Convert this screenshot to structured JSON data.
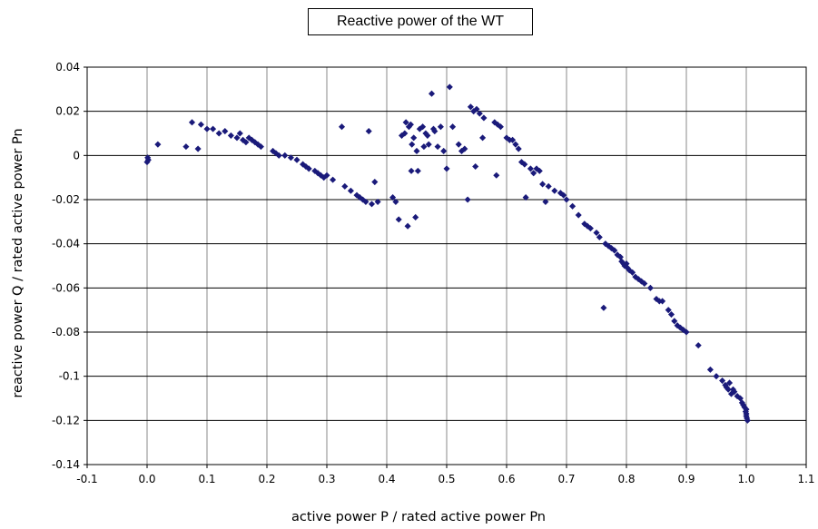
{
  "chart_data": {
    "type": "scatter",
    "title": "Reactive power of the WT",
    "xlabel": "active power P / rated active power Pn",
    "ylabel": "reactive power Q / rated active power Pn",
    "xlim": [
      -0.1,
      1.1
    ],
    "ylim": [
      -0.14,
      0.04
    ],
    "xticks": [
      -0.1,
      0.0,
      0.1,
      0.2,
      0.3,
      0.4,
      0.5,
      0.6,
      0.7,
      0.8,
      0.9,
      1.0,
      1.1
    ],
    "xtick_labels": [
      "-0.1",
      "0.0",
      "0.1",
      "0.2",
      "0.3",
      "0.4",
      "0.5",
      "0.6",
      "0.7",
      "0.8",
      "0.9",
      "1.0",
      "1.1"
    ],
    "yticks": [
      0.04,
      0.02,
      0,
      -0.02,
      -0.04,
      -0.06,
      -0.08,
      -0.1,
      -0.12,
      -0.14
    ],
    "ytick_labels": [
      "0.04",
      "0.02",
      "0",
      "-0.02",
      "-0.04",
      "-0.06",
      "-0.08",
      "-0.1",
      "-0.12",
      "-0.14"
    ],
    "grid": true,
    "legend": false,
    "marker_color": "#1a1a7a",
    "series": [
      {
        "points": [
          [
            0.0,
            -0.003
          ],
          [
            0.002,
            -0.002
          ],
          [
            0.001,
            -0.001
          ],
          [
            0.018,
            0.005
          ],
          [
            0.065,
            0.004
          ],
          [
            0.075,
            0.015
          ],
          [
            0.085,
            0.003
          ],
          [
            0.09,
            0.014
          ],
          [
            0.1,
            0.012
          ],
          [
            0.11,
            0.012
          ],
          [
            0.12,
            0.01
          ],
          [
            0.13,
            0.011
          ],
          [
            0.14,
            0.009
          ],
          [
            0.15,
            0.008
          ],
          [
            0.155,
            0.01
          ],
          [
            0.16,
            0.007
          ],
          [
            0.165,
            0.006
          ],
          [
            0.17,
            0.008
          ],
          [
            0.175,
            0.007
          ],
          [
            0.18,
            0.006
          ],
          [
            0.185,
            0.005
          ],
          [
            0.19,
            0.004
          ],
          [
            0.21,
            0.002
          ],
          [
            0.215,
            0.001
          ],
          [
            0.22,
            0.0
          ],
          [
            0.23,
            0.0
          ],
          [
            0.24,
            -0.001
          ],
          [
            0.25,
            -0.002
          ],
          [
            0.26,
            -0.004
          ],
          [
            0.265,
            -0.005
          ],
          [
            0.27,
            -0.006
          ],
          [
            0.28,
            -0.007
          ],
          [
            0.285,
            -0.008
          ],
          [
            0.29,
            -0.009
          ],
          [
            0.295,
            -0.01
          ],
          [
            0.3,
            -0.009
          ],
          [
            0.31,
            -0.011
          ],
          [
            0.325,
            0.013
          ],
          [
            0.33,
            -0.014
          ],
          [
            0.34,
            -0.016
          ],
          [
            0.35,
            -0.018
          ],
          [
            0.355,
            -0.019
          ],
          [
            0.36,
            -0.02
          ],
          [
            0.365,
            -0.021
          ],
          [
            0.37,
            0.011
          ],
          [
            0.375,
            -0.022
          ],
          [
            0.38,
            -0.012
          ],
          [
            0.385,
            -0.021
          ],
          [
            0.41,
            -0.019
          ],
          [
            0.415,
            -0.021
          ],
          [
            0.42,
            -0.029
          ],
          [
            0.425,
            0.009
          ],
          [
            0.43,
            0.01
          ],
          [
            0.432,
            0.015
          ],
          [
            0.435,
            -0.032
          ],
          [
            0.437,
            0.013
          ],
          [
            0.44,
            0.014
          ],
          [
            0.441,
            -0.007
          ],
          [
            0.442,
            0.005
          ],
          [
            0.445,
            0.008
          ],
          [
            0.448,
            -0.028
          ],
          [
            0.45,
            0.002
          ],
          [
            0.452,
            -0.007
          ],
          [
            0.455,
            0.012
          ],
          [
            0.46,
            0.013
          ],
          [
            0.462,
            0.004
          ],
          [
            0.465,
            0.01
          ],
          [
            0.468,
            0.009
          ],
          [
            0.47,
            0.005
          ],
          [
            0.475,
            0.028
          ],
          [
            0.478,
            0.012
          ],
          [
            0.48,
            0.011
          ],
          [
            0.485,
            0.004
          ],
          [
            0.49,
            0.013
          ],
          [
            0.495,
            0.002
          ],
          [
            0.5,
            -0.006
          ],
          [
            0.505,
            0.031
          ],
          [
            0.51,
            0.013
          ],
          [
            0.52,
            0.005
          ],
          [
            0.525,
            0.002
          ],
          [
            0.53,
            0.003
          ],
          [
            0.535,
            -0.02
          ],
          [
            0.54,
            0.022
          ],
          [
            0.545,
            0.02
          ],
          [
            0.548,
            -0.005
          ],
          [
            0.55,
            0.021
          ],
          [
            0.555,
            0.019
          ],
          [
            0.56,
            0.008
          ],
          [
            0.562,
            0.017
          ],
          [
            0.58,
            0.015
          ],
          [
            0.583,
            -0.009
          ],
          [
            0.585,
            0.014
          ],
          [
            0.59,
            0.013
          ],
          [
            0.6,
            0.008
          ],
          [
            0.605,
            0.007
          ],
          [
            0.61,
            0.007
          ],
          [
            0.615,
            0.005
          ],
          [
            0.62,
            0.003
          ],
          [
            0.625,
            -0.003
          ],
          [
            0.63,
            -0.004
          ],
          [
            0.632,
            -0.019
          ],
          [
            0.64,
            -0.006
          ],
          [
            0.645,
            -0.008
          ],
          [
            0.65,
            -0.006
          ],
          [
            0.655,
            -0.007
          ],
          [
            0.66,
            -0.013
          ],
          [
            0.665,
            -0.021
          ],
          [
            0.67,
            -0.014
          ],
          [
            0.68,
            -0.016
          ],
          [
            0.69,
            -0.017
          ],
          [
            0.695,
            -0.018
          ],
          [
            0.7,
            -0.02
          ],
          [
            0.71,
            -0.023
          ],
          [
            0.72,
            -0.027
          ],
          [
            0.73,
            -0.031
          ],
          [
            0.735,
            -0.032
          ],
          [
            0.74,
            -0.033
          ],
          [
            0.75,
            -0.035
          ],
          [
            0.755,
            -0.037
          ],
          [
            0.762,
            -0.069
          ],
          [
            0.765,
            -0.04
          ],
          [
            0.77,
            -0.041
          ],
          [
            0.775,
            -0.042
          ],
          [
            0.78,
            -0.043
          ],
          [
            0.785,
            -0.045
          ],
          [
            0.79,
            -0.046
          ],
          [
            0.792,
            -0.048
          ],
          [
            0.795,
            -0.049
          ],
          [
            0.797,
            -0.05
          ],
          [
            0.8,
            -0.049
          ],
          [
            0.802,
            -0.051
          ],
          [
            0.805,
            -0.052
          ],
          [
            0.81,
            -0.053
          ],
          [
            0.815,
            -0.055
          ],
          [
            0.82,
            -0.056
          ],
          [
            0.825,
            -0.057
          ],
          [
            0.83,
            -0.058
          ],
          [
            0.84,
            -0.06
          ],
          [
            0.85,
            -0.065
          ],
          [
            0.855,
            -0.066
          ],
          [
            0.86,
            -0.066
          ],
          [
            0.87,
            -0.07
          ],
          [
            0.875,
            -0.072
          ],
          [
            0.88,
            -0.075
          ],
          [
            0.885,
            -0.077
          ],
          [
            0.89,
            -0.078
          ],
          [
            0.895,
            -0.079
          ],
          [
            0.9,
            -0.08
          ],
          [
            0.92,
            -0.086
          ],
          [
            0.94,
            -0.097
          ],
          [
            0.95,
            -0.1
          ],
          [
            0.96,
            -0.102
          ],
          [
            0.965,
            -0.104
          ],
          [
            0.967,
            -0.105
          ],
          [
            0.97,
            -0.106
          ],
          [
            0.972,
            -0.103
          ],
          [
            0.975,
            -0.108
          ],
          [
            0.978,
            -0.106
          ],
          [
            0.98,
            -0.107
          ],
          [
            0.985,
            -0.109
          ],
          [
            0.99,
            -0.11
          ],
          [
            0.993,
            -0.112
          ],
          [
            0.995,
            -0.113
          ],
          [
            0.997,
            -0.114
          ],
          [
            1.0,
            -0.115
          ],
          [
            1.0,
            -0.117
          ],
          [
            1.0,
            -0.118
          ],
          [
            1.001,
            -0.119
          ],
          [
            1.002,
            -0.12
          ],
          [
            0.999,
            -0.116
          ]
        ]
      }
    ]
  }
}
